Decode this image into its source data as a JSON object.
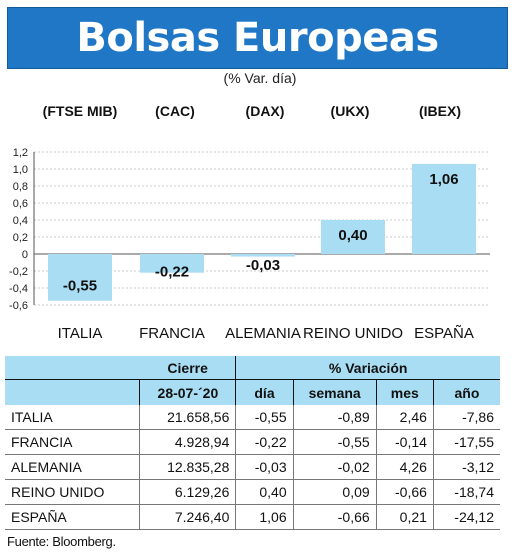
{
  "title": "Bolsas Europeas",
  "subtitle": "(% Var. día)",
  "chart_data": {
    "type": "bar",
    "indices": [
      "(FTSE MIB)",
      "(CAC)",
      "(DAX)",
      "(UKX)",
      "(IBEX)"
    ],
    "categories": [
      "ITALIA",
      "FRANCIA",
      "ALEMANIA",
      "REINO UNIDO",
      "ESPAÑA"
    ],
    "values": [
      -0.55,
      -0.22,
      -0.03,
      0.4,
      1.06
    ],
    "value_labels": [
      "-0,55",
      "-0,22",
      "-0,03",
      "0,40",
      "1,06"
    ],
    "ylim": [
      -0.6,
      1.2
    ],
    "yticks": [
      1.2,
      1.0,
      0.8,
      0.6,
      0.4,
      0.2,
      0,
      -0.2,
      -0.4,
      -0.6
    ],
    "ytick_labels": [
      "1,2",
      "1,0",
      "0,8",
      "0,6",
      "0,4",
      "0,2",
      "0",
      "-0,2",
      "-0,4",
      "-0,6"
    ],
    "bar_color": "#a9ddf3",
    "grid": true
  },
  "table": {
    "header_cierre": "Cierre",
    "header_variacion": "% Variación",
    "date": "28-07-´20",
    "cols": [
      "día",
      "semana",
      "mes",
      "año"
    ],
    "rows": [
      {
        "country": "ITALIA",
        "cierre": "21.658,56",
        "dia": "-0,55",
        "semana": "-0,89",
        "mes": "2,46",
        "anio": "-7,86"
      },
      {
        "country": "FRANCIA",
        "cierre": "4.928,94",
        "dia": "-0,22",
        "semana": "-0,55",
        "mes": "-0,14",
        "anio": "-17,55"
      },
      {
        "country": "ALEMANIA",
        "cierre": "12.835,28",
        "dia": "-0,03",
        "semana": "-0,02",
        "mes": "4,26",
        "anio": "-3,12"
      },
      {
        "country": "REINO UNIDO",
        "cierre": "6.129,26",
        "dia": "0,40",
        "semana": "0,09",
        "mes": "-0,66",
        "anio": "-18,74"
      },
      {
        "country": "ESPAÑA",
        "cierre": "7.246,40",
        "dia": "1,06",
        "semana": "-0,66",
        "mes": "0,21",
        "anio": "-24,12"
      }
    ]
  },
  "source": "Fuente: Bloomberg.",
  "colors": {
    "title_bg": "#1f77c6",
    "header_bg": "#a9ddf3"
  }
}
